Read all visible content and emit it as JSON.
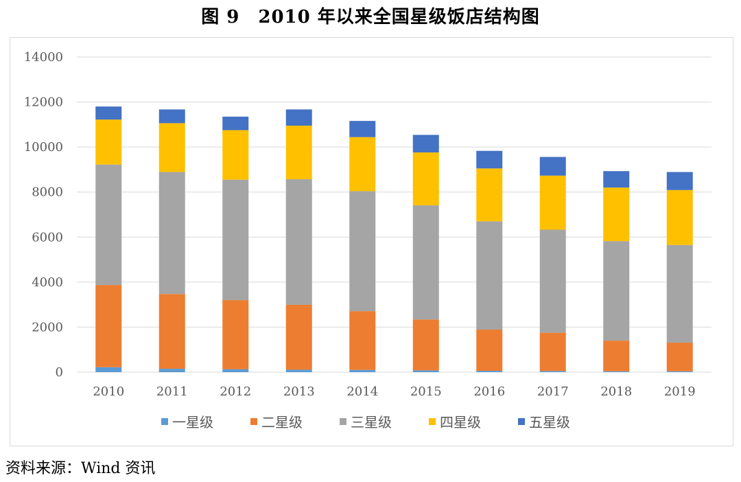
{
  "title": "图 9　2010 年以来全国星级饭店结构图",
  "source": "资料来源：Wind 资讯",
  "chart_data": {
    "type": "bar",
    "stacked": true,
    "categories": [
      "2010",
      "2011",
      "2012",
      "2013",
      "2014",
      "2015",
      "2016",
      "2017",
      "2018",
      "2019"
    ],
    "series": [
      {
        "name": "一星级",
        "color": "#5b9bd5",
        "values": [
          220,
          150,
          130,
          110,
          100,
          80,
          60,
          50,
          40,
          40
        ]
      },
      {
        "name": "二星级",
        "color": "#ed7d31",
        "values": [
          3650,
          3320,
          3070,
          2880,
          2610,
          2260,
          1830,
          1700,
          1360,
          1270
        ]
      },
      {
        "name": "三星级",
        "color": "#a5a5a5",
        "values": [
          5350,
          5420,
          5350,
          5580,
          5330,
          5070,
          4810,
          4580,
          4420,
          4340
        ]
      },
      {
        "name": "四星级",
        "color": "#ffc000",
        "values": [
          2000,
          2170,
          2200,
          2380,
          2400,
          2350,
          2350,
          2400,
          2380,
          2440
        ]
      },
      {
        "name": "五星级",
        "color": "#4472c4",
        "values": [
          580,
          610,
          600,
          720,
          720,
          780,
          780,
          830,
          730,
          800
        ]
      }
    ],
    "yticks": [
      0,
      2000,
      4000,
      6000,
      8000,
      10000,
      12000,
      14000
    ],
    "ylim": [
      0,
      14000
    ],
    "grid": true,
    "legend": "bottom"
  }
}
